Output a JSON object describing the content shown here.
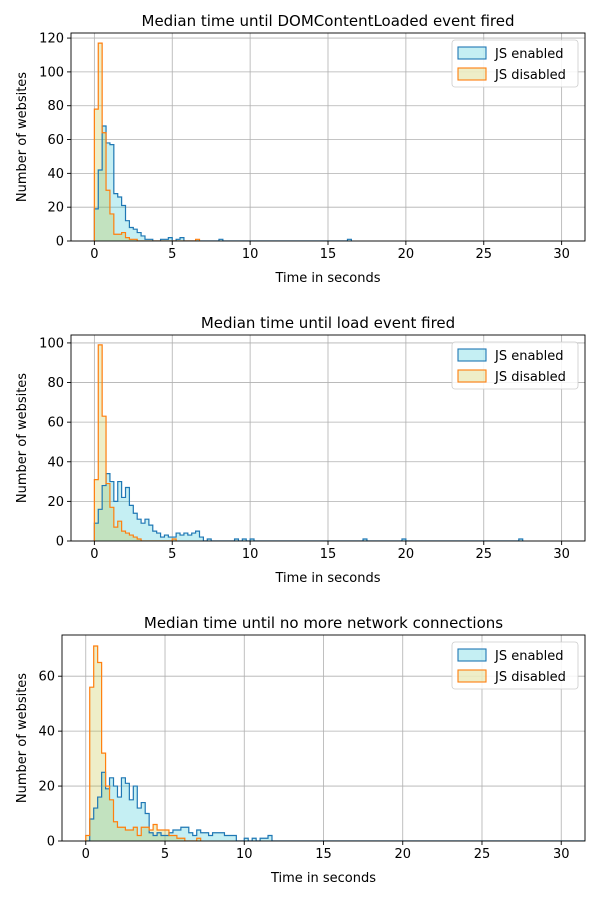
{
  "chart_data": [
    {
      "type": "histogram",
      "title": "Median time until DOMContentLoaded event fired",
      "xlabel": "Time in seconds",
      "ylabel": "Number of websites",
      "xlim": [
        -1.5,
        31.5
      ],
      "ylim": [
        0,
        123
      ],
      "xticks": [
        0,
        5,
        10,
        15,
        20,
        25,
        30
      ],
      "yticks": [
        0,
        20,
        40,
        60,
        80,
        100,
        120
      ],
      "grid": true,
      "legend_position": "top-right",
      "bin_width": 0.25,
      "series": [
        {
          "name": "JS enabled",
          "color": "#1f77b4",
          "fill": "rgba(23,190,207,0.25)",
          "bins_start": 0,
          "counts": [
            19,
            42,
            68,
            58,
            57,
            28,
            26,
            21,
            12,
            8,
            7,
            5,
            3,
            1,
            1,
            0,
            0,
            1,
            1,
            2,
            0,
            1,
            2,
            0,
            0,
            0,
            0,
            0,
            0,
            0,
            0,
            0,
            1,
            0,
            0,
            0,
            0,
            0,
            0,
            0,
            0,
            0,
            0,
            0,
            0,
            0,
            0,
            0,
            0,
            0,
            0,
            0,
            0,
            0,
            0,
            0,
            0,
            0,
            0,
            0,
            0,
            0,
            0,
            0,
            0,
            1
          ]
        },
        {
          "name": "JS disabled",
          "color": "#ff7f0e",
          "fill": "rgba(188,189,34,0.25)",
          "bins_start": 0,
          "counts": [
            78,
            117,
            64,
            30,
            16,
            4,
            4,
            5,
            2,
            1,
            1,
            0,
            0,
            0,
            0,
            0,
            0,
            0,
            0,
            0,
            0,
            0,
            0,
            0,
            0,
            0,
            1
          ]
        }
      ]
    },
    {
      "type": "histogram",
      "title": "Median time until load event fired",
      "xlabel": "Time in seconds",
      "ylabel": "Number of websites",
      "xlim": [
        -1.5,
        31.5
      ],
      "ylim": [
        0,
        104
      ],
      "xticks": [
        0,
        5,
        10,
        15,
        20,
        25,
        30
      ],
      "yticks": [
        0,
        20,
        40,
        60,
        80,
        100
      ],
      "grid": true,
      "legend_position": "top-right",
      "bin_width": 0.25,
      "series": [
        {
          "name": "JS enabled",
          "color": "#1f77b4",
          "fill": "rgba(23,190,207,0.25)",
          "bins_start": 0,
          "counts": [
            9,
            16,
            28,
            34,
            30,
            20,
            30,
            22,
            27,
            18,
            14,
            11,
            9,
            11,
            8,
            5,
            4,
            2,
            3,
            2,
            2,
            4,
            3,
            4,
            3,
            4,
            5,
            2,
            0,
            1,
            0,
            0,
            0,
            0,
            0,
            0,
            1,
            0,
            1,
            0,
            1,
            0,
            0,
            0,
            0,
            0,
            0,
            0,
            0,
            0,
            0,
            0,
            0,
            0,
            0,
            0,
            0,
            0,
            0,
            0,
            0,
            0,
            0,
            0,
            0,
            0,
            0,
            0,
            0,
            1,
            0,
            0,
            0,
            0,
            0,
            0,
            0,
            0,
            0,
            1,
            0,
            0,
            0,
            0,
            0,
            0,
            0,
            0,
            0,
            0,
            0,
            0,
            0,
            0,
            0,
            0,
            0,
            0,
            0,
            0,
            0,
            0,
            0,
            0,
            0,
            0,
            0,
            0,
            0,
            1
          ]
        },
        {
          "name": "JS disabled",
          "color": "#ff7f0e",
          "fill": "rgba(188,189,34,0.25)",
          "bins_start": 0,
          "counts": [
            31,
            99,
            63,
            29,
            17,
            7,
            10,
            5,
            4,
            3,
            2,
            1,
            0,
            0,
            0,
            0,
            0,
            0,
            0,
            0,
            1
          ]
        }
      ]
    },
    {
      "type": "histogram",
      "title": "Median time until no more network connections",
      "xlabel": "Time in seconds",
      "ylabel": "Number of websites",
      "xlim": [
        -1.5,
        31.5
      ],
      "ylim": [
        0,
        75
      ],
      "xticks": [
        0,
        5,
        10,
        15,
        20,
        25,
        30
      ],
      "yticks": [
        0,
        20,
        40,
        60
      ],
      "grid": true,
      "legend_position": "top-right",
      "bin_width": 0.25,
      "series": [
        {
          "name": "JS enabled",
          "color": "#1f77b4",
          "fill": "rgba(23,190,207,0.25)",
          "bins_start": 0,
          "counts": [
            0,
            8,
            12,
            16,
            25,
            19,
            23,
            20,
            16,
            23,
            21,
            15,
            20,
            12,
            14,
            10,
            3,
            2,
            3,
            2,
            2,
            3,
            4,
            4,
            5,
            5,
            3,
            2,
            4,
            3,
            3,
            2,
            3,
            3,
            3,
            2,
            2,
            2,
            0,
            0,
            1,
            0,
            1,
            0,
            1,
            1,
            2,
            0,
            0,
            0,
            0,
            0,
            0,
            0,
            0,
            0,
            0,
            0,
            0,
            0,
            0,
            0,
            0,
            0,
            0,
            0,
            0,
            0,
            0,
            0,
            0,
            0,
            0,
            0,
            0,
            0,
            0,
            0,
            0,
            0,
            0,
            0,
            0,
            0,
            0,
            0,
            0,
            0,
            0,
            0,
            0,
            0,
            0,
            0,
            0,
            0,
            0,
            0,
            0,
            0,
            0,
            0,
            0,
            0,
            0,
            0,
            0,
            0,
            0,
            0,
            0,
            0,
            0,
            0,
            0,
            0,
            0,
            0,
            0,
            0,
            0,
            0,
            0,
            0,
            0,
            0,
            0,
            0,
            0,
            1
          ]
        },
        {
          "name": "JS disabled",
          "color": "#ff7f0e",
          "fill": "rgba(188,189,34,0.25)",
          "bins_start": 0,
          "counts": [
            2,
            56,
            71,
            65,
            32,
            20,
            15,
            7,
            5,
            5,
            4,
            4,
            5,
            2,
            5,
            5,
            4,
            6,
            4,
            4,
            4,
            2,
            2,
            1,
            1,
            0,
            0,
            0,
            1
          ]
        }
      ]
    }
  ]
}
